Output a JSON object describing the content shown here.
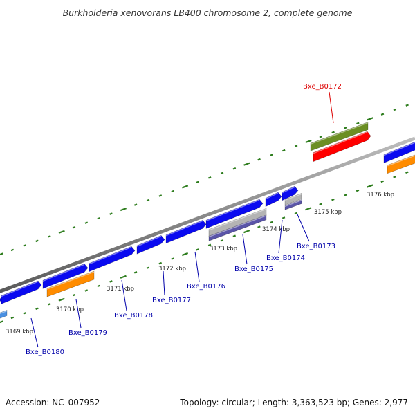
{
  "title": "Burkholderia xenovorans LB400 chromosome 2, complete genome",
  "footer": {
    "accession": "Accession: NC_007952",
    "summary": "Topology: circular; Length: 3,363,523 bp; Genes: 2,977"
  },
  "colors": {
    "backbone": "#8c8c8c",
    "cds_forward": "#0a0af0",
    "cds_reverse": "#ff8c00",
    "highlight": "#ff0000",
    "highlight_pair": "#6b8e23",
    "rna_grey": "#b4b4b4",
    "rna_purple": "#5a55a8",
    "tick": "#2e7d1e",
    "label_default": "#0000aa",
    "label_highlight": "#dd0000"
  },
  "scale_labels": [
    "3169 kbp",
    "3170 kbp",
    "3171 kbp",
    "3172 kbp",
    "3173 kbp",
    "3174 kbp",
    "3175 kbp",
    "3176 kbp"
  ],
  "gene_labels": [
    {
      "text": "Bxe_B0172",
      "highlight": true
    },
    {
      "text": "Bxe_B0173",
      "highlight": false
    },
    {
      "text": "Bxe_B0174",
      "highlight": false
    },
    {
      "text": "Bxe_B0175",
      "highlight": false
    },
    {
      "text": "Bxe_B0176",
      "highlight": false
    },
    {
      "text": "Bxe_B0177",
      "highlight": false
    },
    {
      "text": "Bxe_B0178",
      "highlight": false
    },
    {
      "text": "Bxe_B0179",
      "highlight": false
    },
    {
      "text": "Bxe_B0180",
      "highlight": false
    }
  ]
}
